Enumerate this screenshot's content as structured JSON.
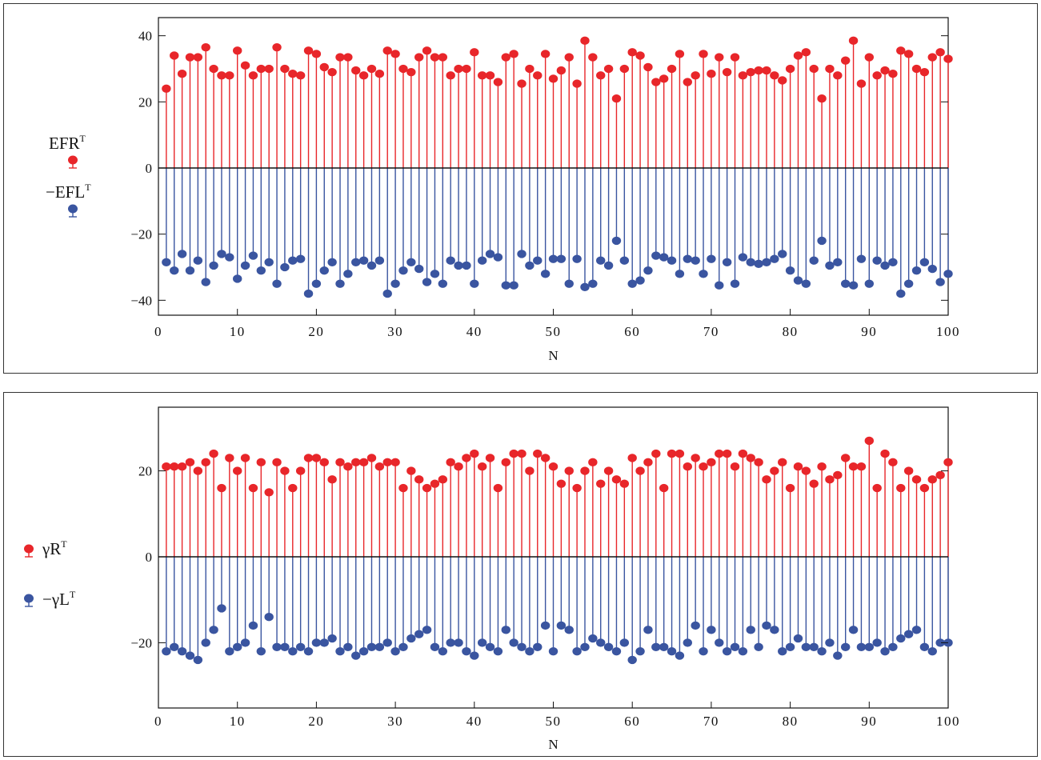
{
  "chart_data": [
    {
      "type": "stem",
      "xlabel": "N",
      "ylabel": "",
      "xlim": [
        0,
        100
      ],
      "ylim": [
        -45,
        45
      ],
      "xticks": [
        0,
        10,
        20,
        30,
        40,
        50,
        60,
        70,
        80,
        90,
        100
      ],
      "xtick_labels": [
        "0",
        "10",
        "20",
        "30",
        "40",
        "50",
        "60",
        "70",
        "80",
        "90",
        "100"
      ],
      "yticks": [
        40,
        20,
        0,
        -20,
        -40
      ],
      "ytick_labels": [
        "40",
        "20",
        "0",
        "−20",
        "−40"
      ],
      "grid": false,
      "legend": {
        "position": "left",
        "entries": [
          {
            "base": "EFR",
            "sup": "T"
          },
          {
            "base": "−EFL",
            "sup": "T"
          }
        ]
      },
      "x": [
        1,
        2,
        3,
        4,
        5,
        6,
        7,
        8,
        9,
        10,
        11,
        12,
        13,
        14,
        15,
        16,
        17,
        18,
        19,
        20,
        21,
        22,
        23,
        24,
        25,
        26,
        27,
        28,
        29,
        30,
        31,
        32,
        33,
        34,
        35,
        36,
        37,
        38,
        39,
        40,
        41,
        42,
        43,
        44,
        45,
        46,
        47,
        48,
        49,
        50,
        51,
        52,
        53,
        54,
        55,
        56,
        57,
        58,
        59,
        60,
        61,
        62,
        63,
        64,
        65,
        66,
        67,
        68,
        69,
        70,
        71,
        72,
        73,
        74,
        75,
        76,
        77,
        78,
        79,
        80,
        81,
        82,
        83,
        84,
        85,
        86,
        87,
        88,
        89,
        90,
        91,
        92,
        93,
        94,
        95,
        96,
        97,
        98,
        99,
        100
      ],
      "series": [
        {
          "name": "EFRᵀ",
          "color": "#e8262a",
          "values": [
            24,
            34,
            28.5,
            33.5,
            33.5,
            36.5,
            30,
            28,
            28,
            35.5,
            31,
            28,
            30,
            30,
            36.5,
            30,
            28.5,
            28,
            35.5,
            34.5,
            30.5,
            29,
            33.5,
            33.5,
            29.5,
            28,
            30,
            28.5,
            35.5,
            34.5,
            30,
            29,
            33.5,
            35.5,
            33.5,
            33.5,
            28,
            30,
            30,
            35,
            28,
            28,
            26,
            33.5,
            34.5,
            25.5,
            30,
            28,
            34.5,
            27,
            29.5,
            33.5,
            25.5,
            38.5,
            33.5,
            28,
            30,
            21,
            30,
            35,
            34,
            30.5,
            26,
            27,
            30,
            34.5,
            26,
            28,
            34.5,
            28.5,
            33.5,
            29,
            33.5,
            28,
            29,
            29.5,
            29.5,
            28,
            26.5,
            30,
            34,
            35,
            30,
            21,
            30,
            28,
            32.5,
            38.5,
            25.5,
            33.5,
            28,
            29.5,
            28.5,
            35.5,
            34.5,
            30,
            29,
            33.5,
            35,
            33
          ]
        },
        {
          "name": "−EFLᵀ",
          "color": "#3a55a0",
          "values": [
            -28.5,
            -31,
            -26,
            -31,
            -28,
            -34.5,
            -29.5,
            -26,
            -27,
            -33.5,
            -29.5,
            -26.5,
            -31,
            -28.5,
            -35,
            -30,
            -28,
            -27.5,
            -38,
            -35,
            -31,
            -28.5,
            -35,
            -32,
            -28.5,
            -28,
            -29.5,
            -28,
            -38,
            -35,
            -31,
            -28.5,
            -30.5,
            -34.5,
            -32,
            -35,
            -28,
            -29.5,
            -29.5,
            -35,
            -28,
            -26,
            -27,
            -35.5,
            -35.5,
            -26,
            -29.5,
            -28,
            -32,
            -27.5,
            -27.5,
            -35,
            -27.5,
            -36,
            -35,
            -28,
            -29.5,
            -22,
            -28,
            -35,
            -34,
            -31,
            -26.5,
            -27,
            -28,
            -32,
            -27.5,
            -28,
            -32,
            -27.5,
            -35.5,
            -28.5,
            -35,
            -27,
            -28.5,
            -29,
            -28.5,
            -27.5,
            -26,
            -31,
            -34,
            -35,
            -28,
            -22,
            -29.5,
            -28.5,
            -35,
            -35.5,
            -27.5,
            -35,
            -28,
            -29.5,
            -28.5,
            -38,
            -35,
            -31,
            -28.5,
            -30.5,
            -34.5,
            -32
          ]
        }
      ]
    },
    {
      "type": "stem",
      "xlabel": "N",
      "ylabel": "",
      "xlim": [
        0,
        100
      ],
      "ylim": [
        -35,
        35
      ],
      "xticks": [
        0,
        10,
        20,
        30,
        40,
        50,
        60,
        70,
        80,
        90,
        100
      ],
      "xtick_labels": [
        "0",
        "10",
        "20",
        "30",
        "40",
        "50",
        "60",
        "70",
        "80",
        "90",
        "100"
      ],
      "yticks": [
        20,
        0,
        -20
      ],
      "ytick_labels": [
        "20",
        "0",
        "−20"
      ],
      "grid": false,
      "legend": {
        "position": "left",
        "entries": [
          {
            "base": "γR",
            "sup": "T"
          },
          {
            "base": "−γL",
            "sup": "T"
          }
        ]
      },
      "x": [
        1,
        2,
        3,
        4,
        5,
        6,
        7,
        8,
        9,
        10,
        11,
        12,
        13,
        14,
        15,
        16,
        17,
        18,
        19,
        20,
        21,
        22,
        23,
        24,
        25,
        26,
        27,
        28,
        29,
        30,
        31,
        32,
        33,
        34,
        35,
        36,
        37,
        38,
        39,
        40,
        41,
        42,
        43,
        44,
        45,
        46,
        47,
        48,
        49,
        50,
        51,
        52,
        53,
        54,
        55,
        56,
        57,
        58,
        59,
        60,
        61,
        62,
        63,
        64,
        65,
        66,
        67,
        68,
        69,
        70,
        71,
        72,
        73,
        74,
        75,
        76,
        77,
        78,
        79,
        80,
        81,
        82,
        83,
        84,
        85,
        86,
        87,
        88,
        89,
        90,
        91,
        92,
        93,
        94,
        95,
        96,
        97,
        98,
        99,
        100
      ],
      "series": [
        {
          "name": "γRᵀ",
          "color": "#e8262a",
          "values": [
            21,
            21,
            21,
            22,
            20,
            22,
            24,
            16,
            23,
            20,
            23,
            16,
            22,
            15,
            22,
            20,
            16,
            20,
            23,
            23,
            22,
            18,
            22,
            21,
            22,
            22,
            23,
            21,
            22,
            22,
            16,
            20,
            18,
            16,
            17,
            18,
            22,
            21,
            23,
            24,
            21,
            23,
            16,
            22,
            24,
            24,
            20,
            24,
            23,
            21,
            17,
            20,
            16,
            20,
            22,
            17,
            20,
            18,
            17,
            23,
            20,
            22,
            24,
            16,
            24,
            24,
            21,
            23,
            21,
            22,
            24,
            24,
            21,
            24,
            23,
            22,
            18,
            20,
            22,
            16,
            21,
            20,
            17,
            21,
            18,
            19,
            23,
            21,
            21,
            27,
            16,
            24,
            22,
            16,
            20,
            18,
            16,
            18,
            19,
            22
          ]
        },
        {
          "name": "−γLᵀ",
          "color": "#3a55a0",
          "values": [
            -22,
            -21,
            -22,
            -23,
            -24,
            -20,
            -17,
            -12,
            -22,
            -21,
            -20,
            -16,
            -22,
            -14,
            -21,
            -21,
            -22,
            -21,
            -22,
            -20,
            -20,
            -19,
            -22,
            -21,
            -23,
            -22,
            -21,
            -21,
            -20,
            -22,
            -21,
            -19,
            -18,
            -17,
            -21,
            -22,
            -20,
            -20,
            -22,
            -23,
            -20,
            -21,
            -22,
            -17,
            -20,
            -21,
            -22,
            -21,
            -16,
            -22,
            -16,
            -17,
            -22,
            -21,
            -19,
            -20,
            -21,
            -22,
            -20,
            -24,
            -22,
            -17,
            -21,
            -21,
            -22,
            -23,
            -20,
            -16,
            -22,
            -17,
            -20,
            -22,
            -21,
            -22,
            -17,
            -21,
            -16,
            -17,
            -22,
            -21,
            -19,
            -21,
            -21,
            -22,
            -20,
            -23,
            -21,
            -17,
            -21,
            -21,
            -20,
            -22,
            -21,
            -19,
            -18,
            -17,
            -21,
            -22,
            -20,
            -20
          ]
        }
      ]
    }
  ]
}
